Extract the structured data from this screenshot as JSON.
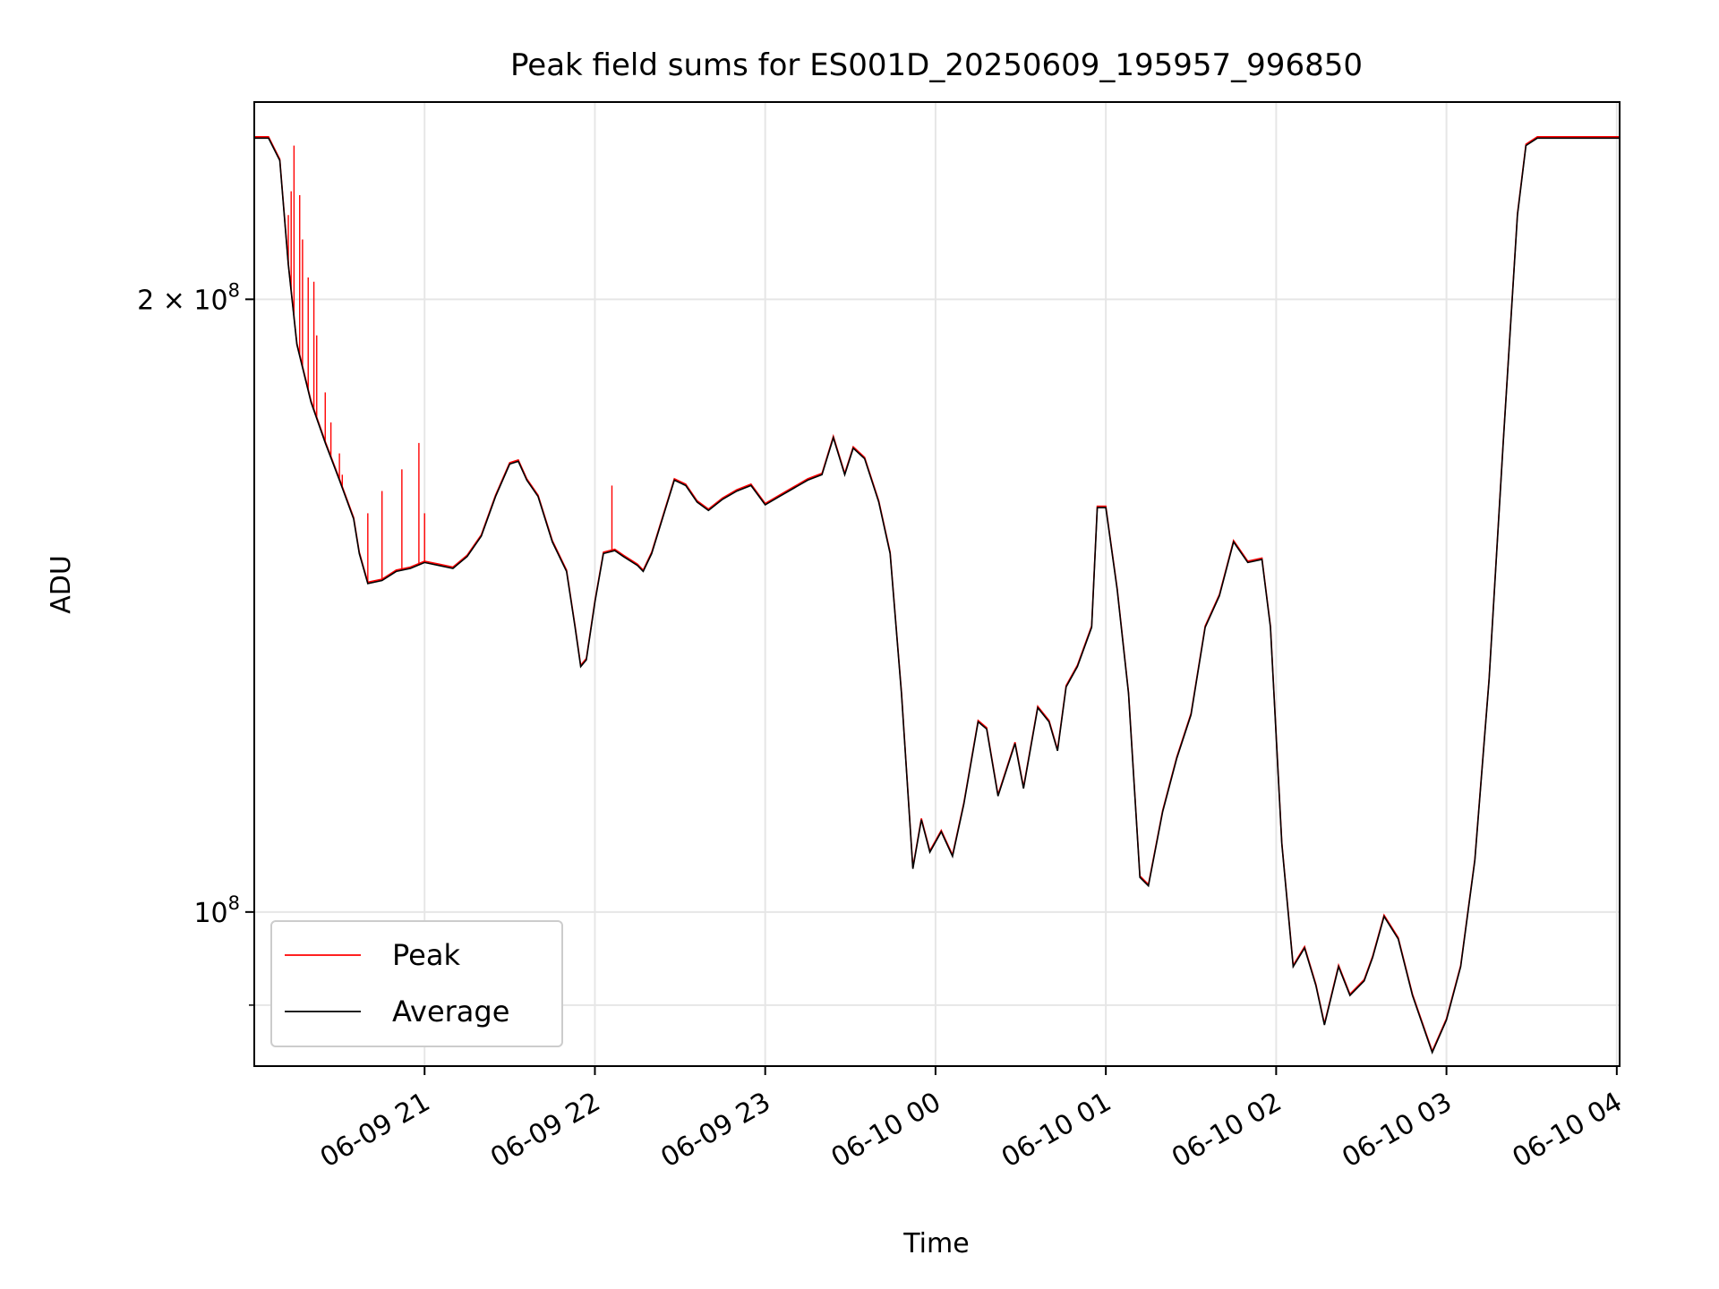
{
  "chart_data": {
    "type": "line",
    "title": "Peak field sums for ES001D_20250609_195957_996850",
    "xlabel": "Time",
    "ylabel": "ADU",
    "y_scale": "log",
    "ylim": [
      84000000,
      250000000
    ],
    "xlim": [
      "06-09 20:00",
      "06-10 04:01"
    ],
    "y_ticks": [
      {
        "value": 200000000,
        "label": "2 × 10",
        "sup": "8"
      },
      {
        "value": 100000000,
        "label": "10",
        "sup": "8"
      }
    ],
    "y_minor_ticks": [
      90000000
    ],
    "x_ticks": [
      "06-09 21",
      "06-09 22",
      "06-09 23",
      "06-10 00",
      "06-10 01",
      "06-10 02",
      "06-10 03",
      "06-10 04"
    ],
    "x_tick_times": [
      "06-09 21:00",
      "06-09 22:00",
      "06-09 23:00",
      "06-10 00:00",
      "06-10 01:00",
      "06-10 02:00",
      "06-10 03:00",
      "06-10 04:00"
    ],
    "grid": true,
    "legend_position": "lower-left",
    "series": [
      {
        "name": "Average",
        "color": "#000000",
        "points": [
          [
            "06-09 20:00",
            240000000
          ],
          [
            "06-09 20:05",
            240000000
          ],
          [
            "06-09 20:09",
            234000000
          ],
          [
            "06-09 20:12",
            208000000
          ],
          [
            "06-09 20:15",
            190000000
          ],
          [
            "06-09 20:20",
            178000000
          ],
          [
            "06-09 20:25",
            170000000
          ],
          [
            "06-09 20:30",
            163000000
          ],
          [
            "06-09 20:35",
            156000000
          ],
          [
            "06-09 20:37",
            150000000
          ],
          [
            "06-09 20:40",
            145000000
          ],
          [
            "06-09 20:45",
            145500000
          ],
          [
            "06-09 20:50",
            147000000
          ],
          [
            "06-09 20:55",
            147500000
          ],
          [
            "06-09 21:00",
            148500000
          ],
          [
            "06-09 21:05",
            148000000
          ],
          [
            "06-09 21:10",
            147500000
          ],
          [
            "06-09 21:15",
            149500000
          ],
          [
            "06-09 21:20",
            153000000
          ],
          [
            "06-09 21:25",
            160000000
          ],
          [
            "06-09 21:30",
            166000000
          ],
          [
            "06-09 21:33",
            166500000
          ],
          [
            "06-09 21:36",
            163000000
          ],
          [
            "06-09 21:40",
            160000000
          ],
          [
            "06-09 21:45",
            152000000
          ],
          [
            "06-09 21:50",
            147000000
          ],
          [
            "06-09 21:53",
            138000000
          ],
          [
            "06-09 21:55",
            132000000
          ],
          [
            "06-09 21:57",
            133000000
          ],
          [
            "06-09 22:00",
            142000000
          ],
          [
            "06-09 22:03",
            150000000
          ],
          [
            "06-09 22:07",
            150500000
          ],
          [
            "06-09 22:10",
            149500000
          ],
          [
            "06-09 22:15",
            148000000
          ],
          [
            "06-09 22:17",
            147000000
          ],
          [
            "06-09 22:20",
            150000000
          ],
          [
            "06-09 22:25",
            158000000
          ],
          [
            "06-09 22:28",
            163000000
          ],
          [
            "06-09 22:32",
            162000000
          ],
          [
            "06-09 22:36",
            159000000
          ],
          [
            "06-09 22:40",
            157500000
          ],
          [
            "06-09 22:45",
            159500000
          ],
          [
            "06-09 22:50",
            161000000
          ],
          [
            "06-09 22:55",
            162000000
          ],
          [
            "06-09 23:00",
            158500000
          ],
          [
            "06-09 23:05",
            160000000
          ],
          [
            "06-09 23:10",
            161500000
          ],
          [
            "06-09 23:15",
            163000000
          ],
          [
            "06-09 23:20",
            164000000
          ],
          [
            "06-09 23:24",
            171000000
          ],
          [
            "06-09 23:28",
            164000000
          ],
          [
            "06-09 23:31",
            169000000
          ],
          [
            "06-09 23:35",
            167000000
          ],
          [
            "06-09 23:40",
            159000000
          ],
          [
            "06-09 23:44",
            150000000
          ],
          [
            "06-09 23:48",
            128000000
          ],
          [
            "06-09 23:52",
            105000000
          ],
          [
            "06-09 23:55",
            111000000
          ],
          [
            "06-09 23:58",
            107000000
          ],
          [
            "06-10 00:02",
            109500000
          ],
          [
            "06-10 00:06",
            106500000
          ],
          [
            "06-10 00:10",
            113000000
          ],
          [
            "06-10 00:15",
            124000000
          ],
          [
            "06-10 00:18",
            123000000
          ],
          [
            "06-10 00:22",
            114000000
          ],
          [
            "06-10 00:28",
            121000000
          ],
          [
            "06-10 00:31",
            115000000
          ],
          [
            "06-10 00:36",
            126000000
          ],
          [
            "06-10 00:40",
            124000000
          ],
          [
            "06-10 00:43",
            120000000
          ],
          [
            "06-10 00:46",
            129000000
          ],
          [
            "06-10 00:50",
            132000000
          ],
          [
            "06-10 00:55",
            138000000
          ],
          [
            "06-10 00:57",
            158000000
          ],
          [
            "06-10 01:00",
            158000000
          ],
          [
            "06-10 01:04",
            144000000
          ],
          [
            "06-10 01:08",
            128000000
          ],
          [
            "06-10 01:12",
            104000000
          ],
          [
            "06-10 01:15",
            103000000
          ],
          [
            "06-10 01:20",
            112000000
          ],
          [
            "06-10 01:25",
            119000000
          ],
          [
            "06-10 01:30",
            125000000
          ],
          [
            "06-10 01:35",
            138000000
          ],
          [
            "06-10 01:40",
            143000000
          ],
          [
            "06-10 01:45",
            152000000
          ],
          [
            "06-10 01:50",
            148500000
          ],
          [
            "06-10 01:55",
            149000000
          ],
          [
            "06-10 01:58",
            138000000
          ],
          [
            "06-10 02:02",
            108000000
          ],
          [
            "06-10 02:06",
            94000000
          ],
          [
            "06-10 02:10",
            96000000
          ],
          [
            "06-10 02:14",
            92000000
          ],
          [
            "06-10 02:17",
            88000000
          ],
          [
            "06-10 02:22",
            94000000
          ],
          [
            "06-10 02:26",
            91000000
          ],
          [
            "06-10 02:31",
            92500000
          ],
          [
            "06-10 02:34",
            95000000
          ],
          [
            "06-10 02:38",
            99500000
          ],
          [
            "06-10 02:43",
            97000000
          ],
          [
            "06-10 02:48",
            91000000
          ],
          [
            "06-10 02:51",
            88500000
          ],
          [
            "06-10 02:55",
            85300000
          ],
          [
            "06-10 03:00",
            88500000
          ],
          [
            "06-10 03:05",
            94000000
          ],
          [
            "06-10 03:10",
            106000000
          ],
          [
            "06-10 03:15",
            130000000
          ],
          [
            "06-10 03:20",
            170000000
          ],
          [
            "06-10 03:25",
            220000000
          ],
          [
            "06-10 03:28",
            238000000
          ],
          [
            "06-10 03:32",
            240000000
          ],
          [
            "06-10 04:01",
            240000000
          ]
        ]
      },
      {
        "name": "Peak",
        "color": "#ff0000",
        "spikes": [
          [
            "06-09 20:12",
            220000000
          ],
          [
            "06-09 20:13",
            226000000
          ],
          [
            "06-09 20:14",
            238000000
          ],
          [
            "06-09 20:16",
            225000000
          ],
          [
            "06-09 20:17",
            214000000
          ],
          [
            "06-09 20:19",
            205000000
          ],
          [
            "06-09 20:21",
            204000000
          ],
          [
            "06-09 20:22",
            192000000
          ],
          [
            "06-09 20:25",
            180000000
          ],
          [
            "06-09 20:27",
            174000000
          ],
          [
            "06-09 20:30",
            168000000
          ],
          [
            "06-09 20:31",
            164000000
          ],
          [
            "06-09 20:40",
            157000000
          ],
          [
            "06-09 20:45",
            161000000
          ],
          [
            "06-09 20:52",
            165000000
          ],
          [
            "06-09 20:58",
            170000000
          ],
          [
            "06-09 21:00",
            157000000
          ],
          [
            "06-09 22:06",
            162000000
          ]
        ]
      }
    ]
  }
}
